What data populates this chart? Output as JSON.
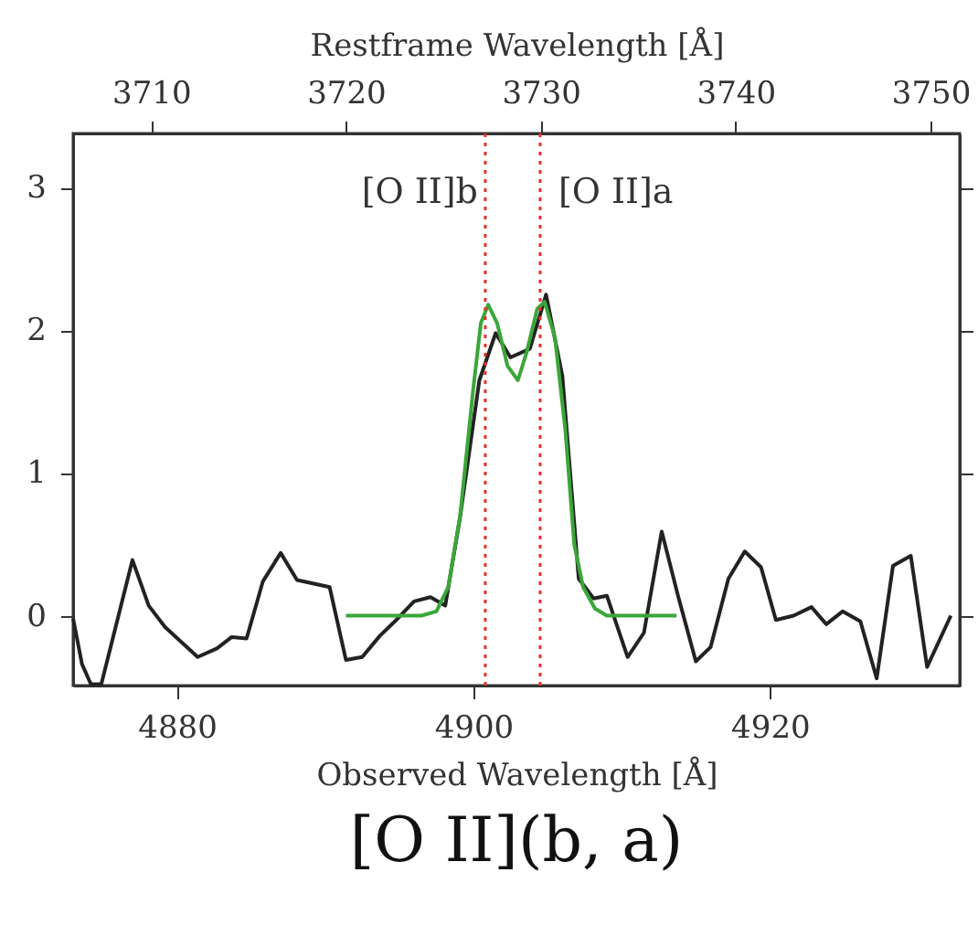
{
  "chart_data": {
    "type": "line",
    "title": "[O II](b, a)",
    "xlabel": "Observed Wavelength [Å]",
    "x2label": "Restframe Wavelength [Å]",
    "xlim": [
      4873.0,
      4932.8
    ],
    "xticks": [
      4880,
      4900,
      4920
    ],
    "x2lim": [
      3706.0,
      3751.5
    ],
    "x2ticks": [
      3710,
      3720,
      3730,
      3740,
      3750
    ],
    "ylim": [
      -0.49,
      3.38
    ],
    "yticks": [
      0,
      1,
      2,
      3
    ],
    "grid": false,
    "marker": "none",
    "series": [
      {
        "color": "#222222",
        "line_style": "solid",
        "x": [
          4873.0,
          4873.6,
          4874.2,
          4874.9,
          4877.0,
          4878.1,
          4879.2,
          4881.4,
          4882.7,
          4883.7,
          4884.7,
          4885.8,
          4887.0,
          4888.1,
          4890.3,
          4891.4,
          4892.5,
          4893.7,
          4894.8,
          4896.0,
          4897.1,
          4898.1,
          4899.1,
          4900.4,
          4901.5,
          4902.5,
          4903.8,
          4904.9,
          4906.0,
          4907.1,
          4908.1,
          4909.0,
          4910.4,
          4911.5,
          4912.7,
          4913.8,
          4915.0,
          4916.0,
          4917.2,
          4918.3,
          4919.4,
          4920.4,
          4921.6,
          4922.8,
          4923.8,
          4924.9,
          4926.1,
          4927.2,
          4928.3,
          4929.5,
          4930.6,
          4932.2
        ],
        "values": [
          -0.02,
          -0.34,
          -0.48,
          -0.48,
          0.39,
          0.07,
          -0.08,
          -0.29,
          -0.23,
          -0.15,
          -0.16,
          0.24,
          0.44,
          0.25,
          0.2,
          -0.31,
          -0.29,
          -0.14,
          -0.03,
          0.1,
          0.13,
          0.07,
          0.69,
          1.65,
          1.98,
          1.81,
          1.87,
          2.25,
          1.68,
          0.26,
          0.12,
          0.14,
          -0.29,
          -0.12,
          0.59,
          0.14,
          -0.32,
          -0.22,
          0.26,
          0.45,
          0.34,
          -0.03,
          0.0,
          0.06,
          -0.06,
          0.03,
          -0.04,
          -0.44,
          0.35,
          0.42,
          -0.36,
          0.0
        ]
      },
      {
        "color": "#3aa63a",
        "line_style": "solid",
        "x": [
          4891.4,
          4896.5,
          4897.5,
          4898.3,
          4899.1,
          4900.0,
          4900.5,
          4901.0,
          4901.6,
          4902.3,
          4903.0,
          4903.6,
          4904.3,
          4904.8,
          4905.5,
          4906.2,
          4906.8,
          4907.4,
          4908.2,
          4909.0,
          4913.7
        ],
        "values": [
          0,
          0,
          0.03,
          0.2,
          0.7,
          1.6,
          2.05,
          2.18,
          2.05,
          1.75,
          1.65,
          1.85,
          2.15,
          2.2,
          1.95,
          1.3,
          0.5,
          0.2,
          0.05,
          0,
          0
        ]
      }
    ],
    "ref_lines": [
      {
        "axis": "x",
        "value": 4900.8,
        "label": "[O II]b",
        "color": "#e8302a",
        "line_style": "dotted"
      },
      {
        "axis": "x",
        "value": 4904.5,
        "label": "[O II]a",
        "color": "#e8302a",
        "line_style": "dotted"
      }
    ]
  }
}
